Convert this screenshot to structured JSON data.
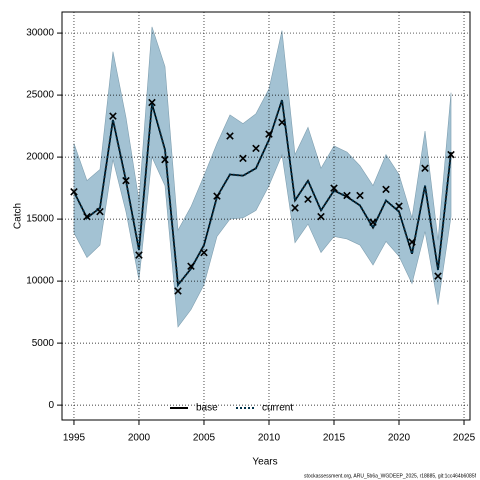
{
  "chart_data": {
    "type": "line",
    "x_label": "Years",
    "y_label": "Catch",
    "footnote": "stockassessment.org, ARU_5b6a_WGDEEP_2025, r18885, git:1cc464b6085f",
    "x": [
      1995,
      1996,
      1997,
      1998,
      1999,
      2000,
      2001,
      2002,
      2003,
      2004,
      2005,
      2006,
      2007,
      2008,
      2009,
      2010,
      2011,
      2012,
      2013,
      2014,
      2015,
      2016,
      2017,
      2018,
      2019,
      2020,
      2021,
      2022,
      2023,
      2024
    ],
    "band_color": "#a3c2d3",
    "band_upper": [
      21100,
      18100,
      19000,
      28500,
      23200,
      16500,
      30500,
      27300,
      14100,
      16000,
      18500,
      21100,
      23400,
      22700,
      23500,
      25500,
      30200,
      20200,
      22400,
      19100,
      20900,
      20400,
      19300,
      17700,
      20200,
      18600,
      15100,
      22100,
      13300,
      25200
    ],
    "band_lower": [
      13900,
      11900,
      12900,
      19800,
      15600,
      10100,
      20000,
      17700,
      6300,
      7700,
      9700,
      13600,
      15000,
      15100,
      15700,
      17700,
      20200,
      13100,
      14600,
      12300,
      13600,
      13400,
      12900,
      11300,
      13200,
      12000,
      9800,
      14000,
      8100,
      15200
    ],
    "series": [
      {
        "name": "base",
        "color": "#000000",
        "style": "solid",
        "values": [
          17200,
          15100,
          15900,
          23000,
          18100,
          12500,
          24300,
          20600,
          9700,
          11000,
          12900,
          16800,
          18600,
          18500,
          19100,
          21400,
          24600,
          16500,
          18100,
          15700,
          17300,
          16800,
          16100,
          14300,
          16500,
          15600,
          12200,
          17700,
          10900,
          20400
        ]
      },
      {
        "name": "current",
        "color": "#00324b",
        "style": "dotted",
        "values": [
          17200,
          15100,
          15900,
          23000,
          18100,
          12500,
          24300,
          20600,
          9700,
          11000,
          12900,
          16800,
          18600,
          18500,
          19100,
          21400,
          24600,
          16500,
          18100,
          15700,
          17300,
          16800,
          16100,
          14300,
          16500,
          15600,
          12200,
          17700,
          10900,
          20400
        ]
      }
    ],
    "observed": [
      17200,
      15200,
      15600,
      23300,
      18100,
      12100,
      24400,
      19800,
      9200,
      11200,
      12300,
      16850,
      21700,
      19900,
      20700,
      21850,
      22800,
      15900,
      16600,
      15200,
      17500,
      16900,
      16900,
      14750,
      17400,
      16050,
      13150,
      19100,
      10400,
      20200
    ],
    "xlim": [
      1994.08,
      2025.46
    ],
    "ylim": [
      -1200,
      31700
    ],
    "xticks": [
      1995,
      2000,
      2005,
      2010,
      2015,
      2020,
      2025
    ],
    "yticks": [
      0,
      5000,
      10000,
      15000,
      20000,
      25000,
      30000
    ],
    "grid": true,
    "legend": "bottom"
  }
}
